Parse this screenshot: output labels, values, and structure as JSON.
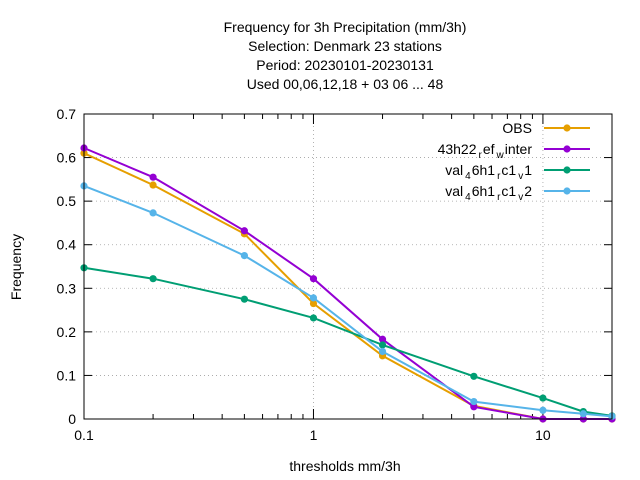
{
  "chart_data": {
    "type": "line",
    "title_lines": [
      "Frequency  for 3h Precipitation (mm/3h)",
      "Selection: Denmark      23 stations",
      "Period: 20230101-20230131",
      "Used  00,06,12,18  + 03 06 ... 48"
    ],
    "xlabel": "thresholds mm/3h",
    "ylabel": "Frequency",
    "x_scale": "log",
    "xlim": [
      0.1,
      20
    ],
    "ylim": [
      0,
      0.7
    ],
    "x_ticks": [
      0.1,
      1,
      10
    ],
    "x_tick_labels": [
      "0.1",
      "1",
      "10"
    ],
    "y_ticks": [
      0,
      0.1,
      0.2,
      0.3,
      0.4,
      0.5,
      0.6,
      0.7
    ],
    "y_tick_labels": [
      "0",
      "0.1",
      "0.2",
      "0.3",
      "0.4",
      "0.5",
      "0.6",
      "0.7"
    ],
    "grid": true,
    "legend_position": "top-right",
    "x": [
      0.1,
      0.2,
      0.5,
      1,
      2,
      5,
      10,
      15,
      20
    ],
    "series": [
      {
        "name": "OBS",
        "color": "#e69f00",
        "values": [
          0.61,
          0.537,
          0.425,
          0.265,
          0.145,
          0.03,
          0.0,
          0.0,
          0.0
        ]
      },
      {
        "name_parts": [
          "43h22",
          "r",
          "ef",
          "w",
          "inter"
        ],
        "color": "#9400d3",
        "values": [
          0.622,
          0.555,
          0.432,
          0.322,
          0.183,
          0.028,
          0.0,
          0.0,
          0.0
        ]
      },
      {
        "name_parts": [
          "val",
          "4",
          "6h1",
          "r",
          "c1",
          "v",
          "1"
        ],
        "color": "#009e73",
        "values": [
          0.347,
          0.322,
          0.275,
          0.232,
          0.17,
          0.098,
          0.048,
          0.017,
          0.007
        ]
      },
      {
        "name_parts": [
          "val",
          "4",
          "6h1",
          "r",
          "c1",
          "v",
          "2"
        ],
        "color": "#56b4e9",
        "values": [
          0.535,
          0.473,
          0.375,
          0.278,
          0.155,
          0.04,
          0.02,
          0.012,
          0.006
        ]
      }
    ]
  }
}
